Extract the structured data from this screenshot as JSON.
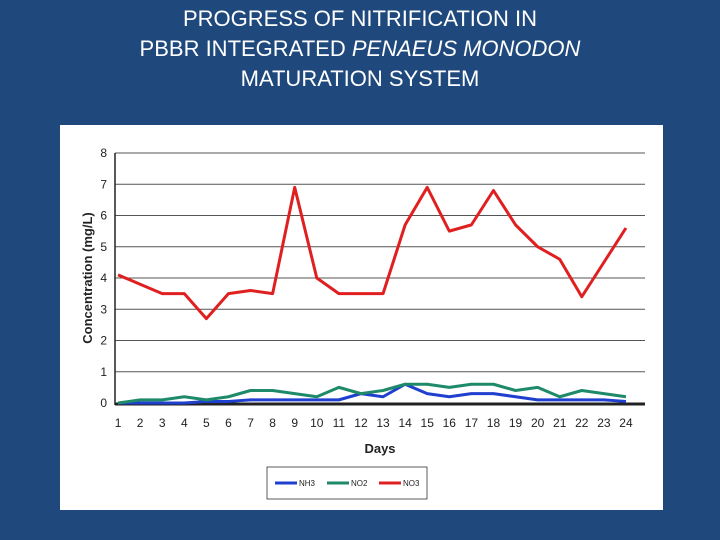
{
  "slide": {
    "title_line1": "PROGRESS OF NITRIFICATION IN",
    "title_line2_prefix": "PBBR INTEGRATED ",
    "title_line2_italic": "PENAEUS MONODON",
    "title_line3": "MATURATION SYSTEM",
    "background_color": "#1f497d"
  },
  "chart_data": {
    "type": "line",
    "title": "",
    "xlabel": "Days",
    "ylabel": "Concentration (mg/L)",
    "x": [
      1,
      2,
      3,
      4,
      5,
      6,
      7,
      8,
      9,
      10,
      11,
      12,
      13,
      14,
      15,
      16,
      17,
      18,
      19,
      20,
      21,
      22,
      23,
      24
    ],
    "xtick_labels": [
      "1",
      "2",
      "3",
      "4",
      "5",
      "6",
      "7",
      "8",
      "9",
      "10",
      "11",
      "12",
      "13",
      "14",
      "15",
      "16",
      "17",
      "18",
      "19",
      "20",
      "21",
      "22",
      "23",
      "24"
    ],
    "ylim": [
      0,
      8
    ],
    "yticks": [
      0,
      1,
      2,
      3,
      4,
      5,
      6,
      7,
      8
    ],
    "grid": true,
    "legend_position": "bottom",
    "series": [
      {
        "name": "NH3",
        "color": "#1f3fcf",
        "values": [
          0,
          0,
          0,
          0,
          0.05,
          0.05,
          0.1,
          0.1,
          0.1,
          0.1,
          0.1,
          0.3,
          0.2,
          0.6,
          0.3,
          0.2,
          0.3,
          0.3,
          0.2,
          0.1,
          0.1,
          0.1,
          0.1,
          0.05
        ]
      },
      {
        "name": "NO2",
        "color": "#1e8a6a",
        "values": [
          0,
          0.1,
          0.1,
          0.2,
          0.1,
          0.2,
          0.4,
          0.4,
          0.3,
          0.2,
          0.5,
          0.3,
          0.4,
          0.6,
          0.6,
          0.5,
          0.6,
          0.6,
          0.4,
          0.5,
          0.2,
          0.4,
          0.3,
          0.2
        ]
      },
      {
        "name": "NO3",
        "color": "#e02020",
        "values": [
          4.1,
          3.8,
          3.5,
          3.5,
          2.7,
          3.5,
          3.6,
          3.5,
          6.9,
          4.0,
          3.5,
          3.5,
          3.5,
          5.7,
          6.9,
          5.5,
          5.7,
          6.8,
          5.7,
          5.0,
          4.6,
          3.4,
          4.5,
          5.6
        ]
      }
    ]
  }
}
